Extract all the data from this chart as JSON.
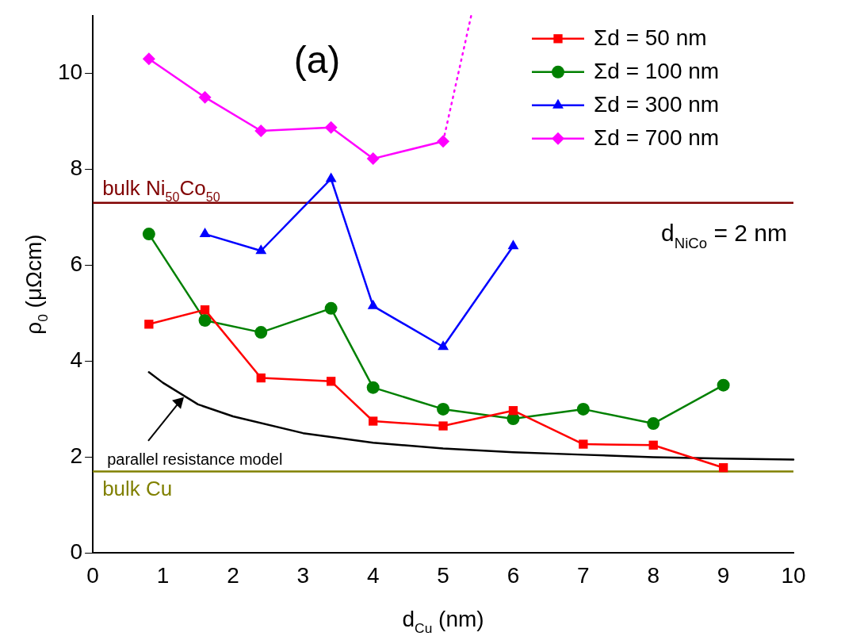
{
  "chart_data": {
    "type": "line",
    "xlabel": "d$_{Cu}$ (nm)",
    "ylabel": "ρ$_{0}$ (μΩcm)",
    "xlim": [
      0,
      10
    ],
    "xticks": [
      0,
      1,
      2,
      3,
      4,
      5,
      6,
      7,
      8,
      9,
      10
    ],
    "ylim": [
      0,
      11.2
    ],
    "yticks": [
      0,
      2,
      4,
      6,
      8,
      10
    ],
    "grid": false,
    "legend": "top right",
    "line_style": "solid",
    "series": [
      {
        "name": "Σd = 50 nm",
        "color": "#ff0000",
        "marker": "square",
        "x": [
          0.8,
          1.6,
          2.4,
          3.4,
          4,
          5,
          6,
          7,
          8,
          9
        ],
        "values": [
          4.77,
          5.07,
          3.65,
          3.58,
          2.75,
          2.65,
          2.97,
          2.27,
          2.25,
          1.78
        ]
      },
      {
        "name": "Σd = 100 nm",
        "color": "#008000",
        "marker": "circle",
        "x": [
          0.8,
          1.6,
          2.4,
          3.4,
          4,
          5,
          6,
          7,
          8,
          9
        ],
        "values": [
          6.65,
          4.85,
          4.6,
          5.1,
          3.45,
          3.0,
          2.8,
          3.0,
          2.7,
          3.5
        ]
      },
      {
        "name": "Σd = 300 nm",
        "color": "#0000ff",
        "marker": "triangle",
        "x": [
          1.6,
          2.4,
          3.4,
          4,
          5,
          6
        ],
        "values": [
          6.65,
          6.3,
          7.8,
          5.15,
          4.3,
          6.4
        ]
      },
      {
        "name": "Σd = 700 nm",
        "color": "#ff00ff",
        "marker": "diamond",
        "x": [
          0.8,
          1.6,
          2.4,
          3.4,
          4,
          5
        ],
        "values": [
          10.3,
          9.5,
          8.8,
          8.87,
          8.22,
          8.58
        ]
      },
      {
        "color": "#ff00ff",
        "marker": "none",
        "line_style": "dotted",
        "x": [
          5,
          5.4
        ],
        "values": [
          8.58,
          11.2
        ]
      },
      {
        "color": "#000000",
        "marker": "none",
        "x": [
          0.8,
          1,
          1.5,
          2,
          3,
          4,
          5,
          6,
          7,
          8,
          9,
          10
        ],
        "values": [
          3.77,
          3.55,
          3.1,
          2.85,
          2.5,
          2.3,
          2.18,
          2.1,
          2.05,
          2.0,
          1.97,
          1.95
        ]
      }
    ],
    "ref_lines": [
      {
        "axis": "y",
        "value": 7.3,
        "label": "bulk Ni$_{50}$Co$_{50}$",
        "color": "#800000"
      },
      {
        "axis": "y",
        "value": 1.7,
        "label": "bulk Cu",
        "color": "#808000"
      }
    ],
    "annotations": [
      "(a)",
      "d$_{NiCo}$ = 2 nm",
      {
        "text": "parallel resistance model",
        "x": 1.3,
        "y": 3.25
      }
    ]
  }
}
